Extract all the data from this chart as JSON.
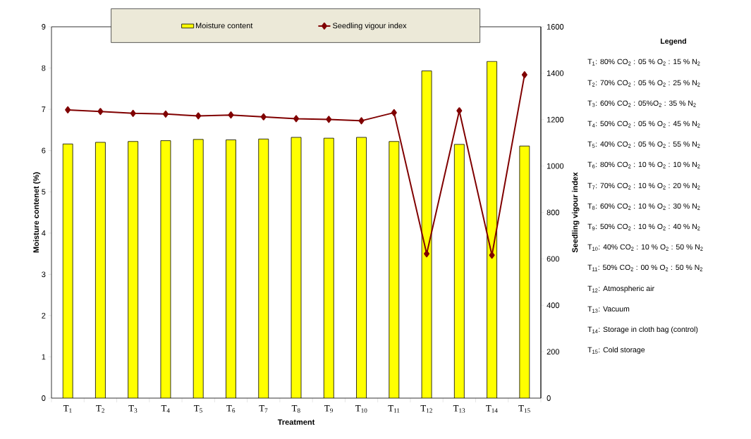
{
  "chart_data": {
    "type": "bar",
    "xlabel": "Treatment",
    "ylabel": "Moisture contenet (%)",
    "y2label": "Seedling vigour index",
    "categories": [
      "T$_{1}$",
      "T$_{2}$",
      "T$_{3}$",
      "T$_{4}$",
      "T$_{5}$",
      "T$_{6}$",
      "T$_{7}$",
      "T$_{8}$",
      "T$_{9}$",
      "T$_{10}$",
      "T$_{11}$",
      "T$_{12}$",
      "T$_{13}$",
      "T$_{14}$",
      "T$_{15}$"
    ],
    "series": [
      {
        "name": "Moisture content",
        "type": "bar",
        "color": "#ffff00",
        "values": [
          6.16,
          6.2,
          6.22,
          6.24,
          6.27,
          6.26,
          6.28,
          6.32,
          6.3,
          6.32,
          6.22,
          7.93,
          6.15,
          8.16,
          6.11
        ]
      },
      {
        "name": "Seedling vigour index",
        "type": "line",
        "axis": "y2",
        "color": "#800000",
        "marker": "diamond",
        "values": [
          1242,
          1235,
          1227,
          1224,
          1216,
          1220,
          1212,
          1204,
          1201,
          1195,
          1230,
          622,
          1238,
          616,
          1393
        ]
      }
    ],
    "ylim": [
      0,
      9
    ],
    "yticks": [
      0,
      1,
      2,
      3,
      4,
      5,
      6,
      7,
      8,
      9
    ],
    "y2lim": [
      0,
      1600
    ],
    "y2ticks": [
      0,
      200,
      400,
      600,
      800,
      1000,
      1200,
      1400,
      1600
    ],
    "legend": "top",
    "annotations": [
      "Legend",
      "T$_{1}$: 80% CO$_{2}$ : 05 % O$_{2}$ : 15 % N$_{2}$",
      "T$_{2}$: 70% CO$_{2}$ : 05 % O$_{2}$ : 25 % N$_{2}$",
      "T$_{3}$: 60% CO$_{2}$ : 05%O$_{2}$ : 35 % N$_{2}$",
      "T$_{4}$: 50% CO$_{2}$ : 05 % O$_{2}$ : 45 % N$_{2}$",
      "T$_{5}$: 40% CO$_{2}$ : 05 % O$_{2}$ : 55 % N$_{2}$",
      "T$_{6}$: 80% CO$_{2}$ : 10 % O$_{2}$ : 10 % N$_{2}$",
      "T$_{7}$: 70% CO$_{2}$ : 10 % O$_{2}$ : 20 % N$_{2}$",
      "T$_{8}$: 60% CO$_{2}$ : 10 % O$_{2}$ : 30 % N$_{2}$",
      "T$_{9}$: 50% CO$_{2}$ : 10 % O$_{2}$ : 40 % N$_{2}$",
      "T$_{10}$: 40% CO$_{2}$ : 10 % O$_{2}$ : 50 % N$_{2}$",
      "T$_{11}$: 50% CO$_{2}$ : 00 % O$_{2}$ : 50 % N$_{2}$",
      "T$_{12}$: Atmospheric air",
      "T$_{13}$: Vacuum",
      "T$_{14}$: Storage in cloth bag (control)",
      "T$_{15}$: Cold storage"
    ]
  }
}
